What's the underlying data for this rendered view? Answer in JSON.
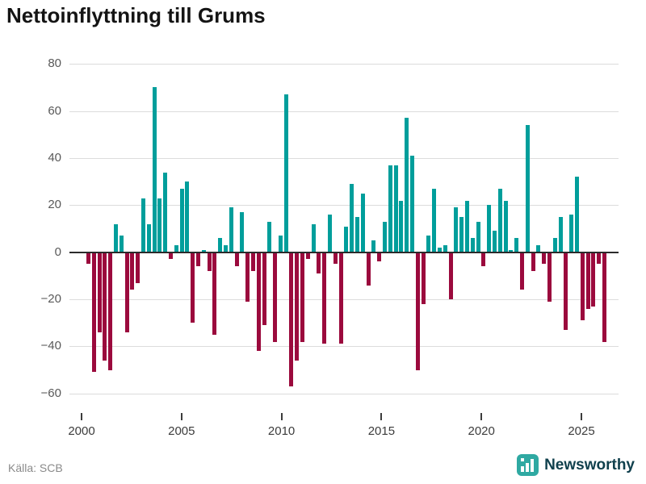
{
  "title": "Nettoinflyttning till Grums",
  "source": "Källa: SCB",
  "brand": {
    "name": "Newsworthy",
    "icon": "bar-chart-icon",
    "icon_color": "#2fa9a2",
    "text_color": "#10404d"
  },
  "chart_data": {
    "type": "bar",
    "title": "Nettoinflyttning till Grums",
    "xlabel": "",
    "ylabel": "",
    "ylim": [
      -60,
      80
    ],
    "x_range_years": [
      2000,
      2026
    ],
    "grid": true,
    "y_ticks": [
      {
        "label": "80",
        "v": 80
      },
      {
        "label": "60",
        "v": 60
      },
      {
        "label": "40",
        "v": 40
      },
      {
        "label": "20",
        "v": 20
      },
      {
        "label": "0",
        "v": 0
      },
      {
        "label": "−20",
        "v": -20
      },
      {
        "label": "−40",
        "v": -40
      },
      {
        "label": "−60",
        "v": -60
      }
    ],
    "x_ticks": [
      {
        "label": "2000",
        "year": 2000
      },
      {
        "label": "2005",
        "year": 2005
      },
      {
        "label": "2010",
        "year": 2010
      },
      {
        "label": "2015",
        "year": 2015
      },
      {
        "label": "2020",
        "year": 2020
      },
      {
        "label": "2025",
        "year": 2025
      }
    ],
    "positive_color": "#009e9b",
    "negative_color": "#9b0a3d",
    "values": [
      -5,
      -51,
      -34,
      -46,
      -50,
      12,
      7,
      -34,
      -16,
      -13,
      23,
      12,
      70,
      23,
      34,
      -3,
      3,
      27,
      30,
      -30,
      -6,
      1,
      -8,
      -35,
      6,
      3,
      19,
      -6,
      17,
      -21,
      -8,
      -42,
      -31,
      13,
      -38,
      7,
      67,
      -57,
      -46,
      -38,
      -3,
      12,
      -9,
      -39,
      16,
      -5,
      -39,
      11,
      29,
      15,
      25,
      -14,
      5,
      -4,
      13,
      37,
      37,
      22,
      57,
      41,
      -50,
      -22,
      7,
      27,
      2,
      3,
      -20,
      19,
      15,
      22,
      6,
      13,
      -6,
      20,
      9,
      27,
      22,
      1,
      6,
      -16,
      54,
      -8,
      3,
      -5,
      -21,
      6,
      15,
      -33,
      16,
      32,
      -29,
      -24,
      -23,
      -5,
      -38
    ]
  }
}
